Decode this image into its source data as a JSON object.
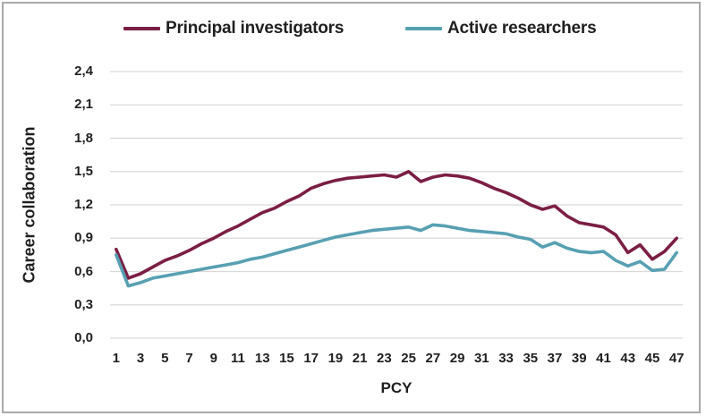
{
  "legend": {
    "items": [
      {
        "label": "Principal investigators",
        "color": "#7B1E44"
      },
      {
        "label": "Active researchers",
        "color": "#57A0B2"
      }
    ]
  },
  "chart_data": {
    "type": "line",
    "title": "",
    "xlabel": "PCY",
    "ylabel": "Career collaboration",
    "ylim": [
      0,
      2.4
    ],
    "ytick_step": 0.3,
    "grid": true,
    "legend_position": "top",
    "decimal_style": "comma",
    "grid_color": "#D9D9D9",
    "x": [
      1,
      2,
      3,
      4,
      5,
      6,
      7,
      8,
      9,
      10,
      11,
      12,
      13,
      14,
      15,
      16,
      17,
      18,
      19,
      20,
      21,
      22,
      23,
      24,
      25,
      26,
      27,
      28,
      29,
      30,
      31,
      32,
      33,
      34,
      35,
      36,
      37,
      38,
      39,
      40,
      41,
      42,
      43,
      44,
      45,
      46,
      47
    ],
    "x_tick_labels": [
      "1",
      "3",
      "5",
      "7",
      "9",
      "11",
      "13",
      "15",
      "17",
      "19",
      "21",
      "23",
      "25",
      "27",
      "29",
      "31",
      "33",
      "35",
      "37",
      "39",
      "41",
      "43",
      "45",
      "47"
    ],
    "y_ticks": [
      {
        "label": "0,0",
        "value": 0.0
      },
      {
        "label": "0,3",
        "value": 0.3
      },
      {
        "label": "0,6",
        "value": 0.6
      },
      {
        "label": "0,9",
        "value": 0.9
      },
      {
        "label": "1,2",
        "value": 1.2
      },
      {
        "label": "1,5",
        "value": 1.5
      },
      {
        "label": "1,8",
        "value": 1.8
      },
      {
        "label": "2,1",
        "value": 2.1
      },
      {
        "label": "2,4",
        "value": 2.4
      }
    ],
    "series": [
      {
        "name": "Principal investigators",
        "color": "#7B1E44",
        "values": [
          0.8,
          0.54,
          0.58,
          0.64,
          0.7,
          0.74,
          0.79,
          0.85,
          0.9,
          0.96,
          1.01,
          1.07,
          1.13,
          1.17,
          1.23,
          1.28,
          1.35,
          1.39,
          1.42,
          1.44,
          1.45,
          1.46,
          1.47,
          1.45,
          1.5,
          1.41,
          1.45,
          1.47,
          1.46,
          1.44,
          1.4,
          1.35,
          1.31,
          1.26,
          1.2,
          1.16,
          1.19,
          1.1,
          1.04,
          1.02,
          1.0,
          0.93,
          0.77,
          0.84,
          0.71,
          0.78,
          0.9
        ]
      },
      {
        "name": "Active researchers",
        "color": "#57A0B2",
        "values": [
          0.75,
          0.47,
          0.5,
          0.54,
          0.56,
          0.58,
          0.6,
          0.62,
          0.64,
          0.66,
          0.68,
          0.71,
          0.73,
          0.76,
          0.79,
          0.82,
          0.85,
          0.88,
          0.91,
          0.93,
          0.95,
          0.97,
          0.98,
          0.99,
          1.0,
          0.97,
          1.02,
          1.01,
          0.99,
          0.97,
          0.96,
          0.95,
          0.94,
          0.91,
          0.89,
          0.82,
          0.86,
          0.81,
          0.78,
          0.77,
          0.78,
          0.7,
          0.65,
          0.69,
          0.61,
          0.62,
          0.77
        ]
      }
    ]
  }
}
